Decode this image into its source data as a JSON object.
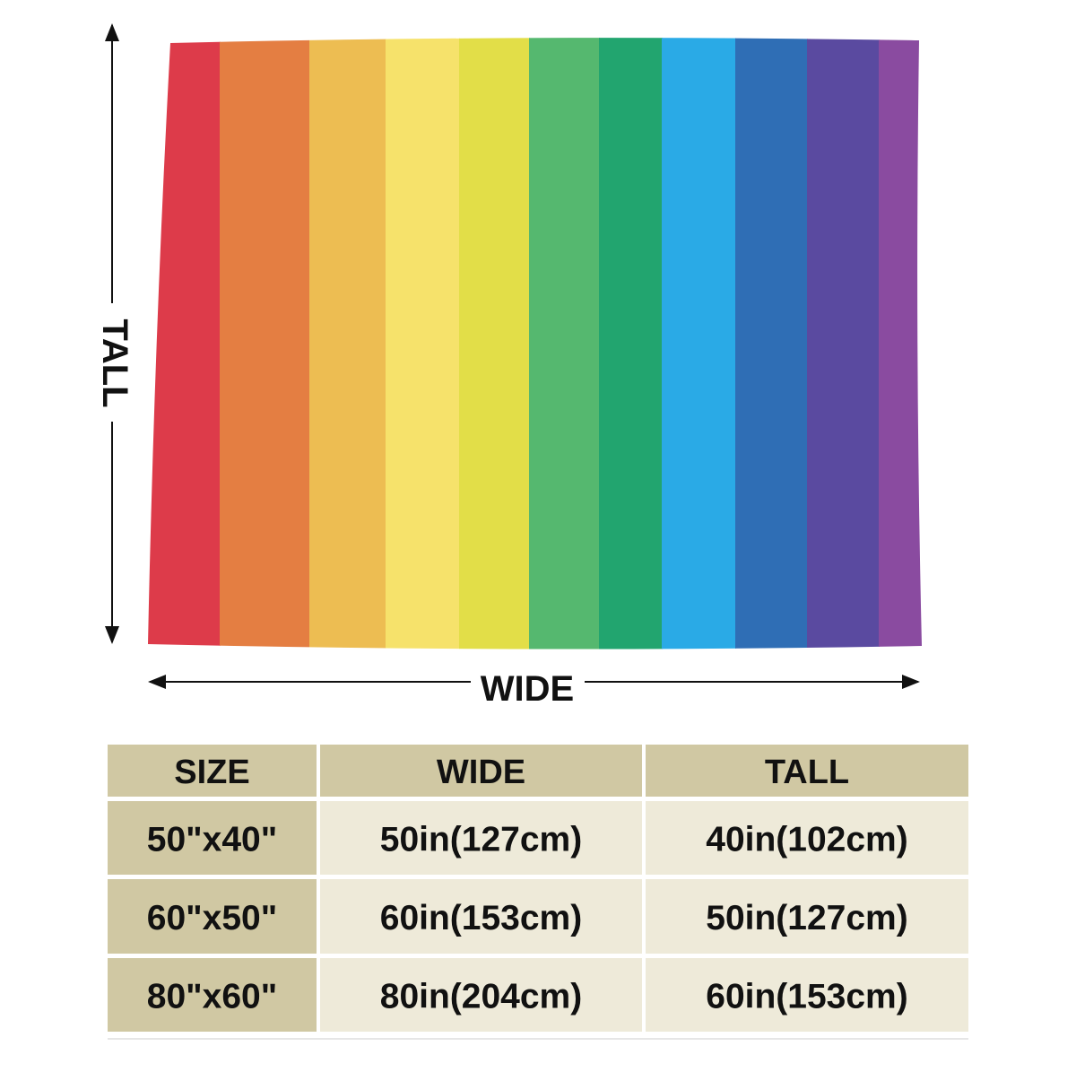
{
  "dimensions": {
    "tall_label": "TALL",
    "wide_label": "WIDE"
  },
  "table": {
    "header": [
      "SIZE",
      "WIDE",
      "TALL"
    ],
    "rows": [
      [
        "50\"x40\"",
        "50in(127cm)",
        "40in(102cm)"
      ],
      [
        "60\"x50\"",
        "60in(153cm)",
        "50in(127cm)"
      ],
      [
        "80\"x60\"",
        "80in(204cm)",
        "60in(153cm)"
      ]
    ]
  }
}
